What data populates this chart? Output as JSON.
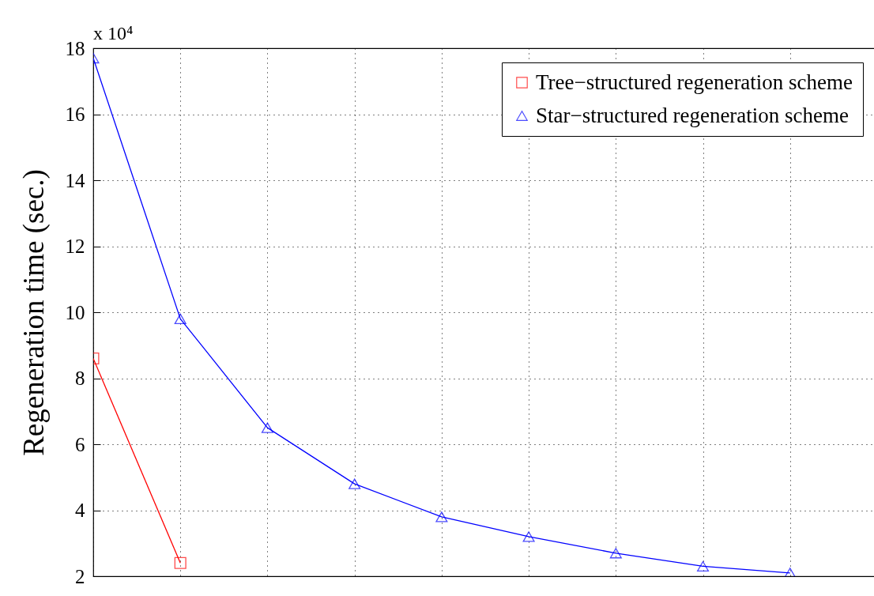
{
  "chart_data": {
    "type": "line",
    "ylabel": "Regeneration time (sec.)",
    "annotations": [
      "x 10⁴"
    ],
    "categories": [
      null,
      null,
      null,
      null,
      null,
      null,
      null,
      null,
      null,
      null
    ],
    "series": [
      {
        "name": "Tree−structured regeneration scheme",
        "color": "#ff0000",
        "marker": "square",
        "values": [
          8.6,
          2.4,
          null,
          null,
          null,
          null,
          null,
          null,
          null,
          null
        ]
      },
      {
        "name": "Star−structured regeneration scheme",
        "color": "#0000ff",
        "marker": "triangle",
        "values": [
          17.7,
          9.8,
          6.5,
          4.8,
          3.8,
          3.2,
          2.7,
          2.3,
          2.1,
          null
        ]
      }
    ],
    "ylim": [
      2,
      18
    ],
    "yticks": [
      2,
      4,
      6,
      8,
      10,
      12,
      14,
      16,
      18
    ],
    "grid": true,
    "legend": "top right",
    "tick_labels": "y",
    "line_style": "solid"
  }
}
